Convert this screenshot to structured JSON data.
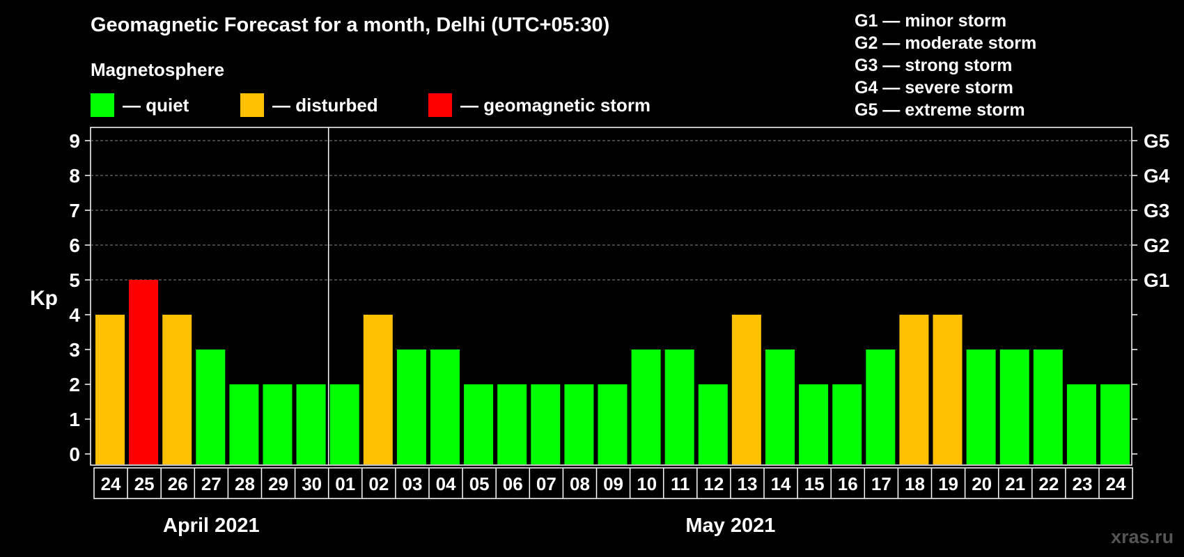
{
  "title": "Geomagnetic Forecast for a month, Delhi (UTC+05:30)",
  "magnetosphere_label": "Magnetosphere",
  "legend": [
    {
      "color": "#00ff00",
      "label": "— quiet"
    },
    {
      "color": "#ffc000",
      "label": "— disturbed"
    },
    {
      "color": "#ff0000",
      "label": "— geomagnetic storm"
    }
  ],
  "storm_scale": [
    "G1 — minor storm",
    "G2 — moderate storm",
    "G3 — strong storm",
    "G4 — severe storm",
    "G5 — extreme storm"
  ],
  "site": "xras.ru",
  "chart_data": {
    "type": "bar",
    "ylabel": "Kp",
    "ylim": [
      0,
      9
    ],
    "yticks": [
      0,
      1,
      2,
      3,
      4,
      5,
      6,
      7,
      8,
      9
    ],
    "right_ticks": [
      {
        "value": 5,
        "label": "G1"
      },
      {
        "value": 6,
        "label": "G2"
      },
      {
        "value": 7,
        "label": "G3"
      },
      {
        "value": 8,
        "label": "G4"
      },
      {
        "value": 9,
        "label": "G5"
      }
    ],
    "grid": true,
    "categories": [
      "24",
      "25",
      "26",
      "27",
      "28",
      "29",
      "30",
      "01",
      "02",
      "03",
      "04",
      "05",
      "06",
      "07",
      "08",
      "09",
      "10",
      "11",
      "12",
      "13",
      "14",
      "15",
      "16",
      "17",
      "18",
      "19",
      "20",
      "21",
      "22",
      "23",
      "24"
    ],
    "values": [
      4,
      5,
      4,
      3,
      2,
      2,
      2,
      2,
      4,
      3,
      3,
      2,
      2,
      2,
      2,
      2,
      3,
      3,
      2,
      4,
      3,
      2,
      2,
      3,
      4,
      4,
      3,
      3,
      3,
      2,
      2
    ],
    "colors": {
      "quiet": "#00ff00",
      "disturbed": "#ffc000",
      "storm": "#ff0000"
    },
    "months": [
      {
        "label": "April 2021",
        "start": 0,
        "end": 6
      },
      {
        "label": "May 2021",
        "start": 7,
        "end": 30
      }
    ]
  }
}
